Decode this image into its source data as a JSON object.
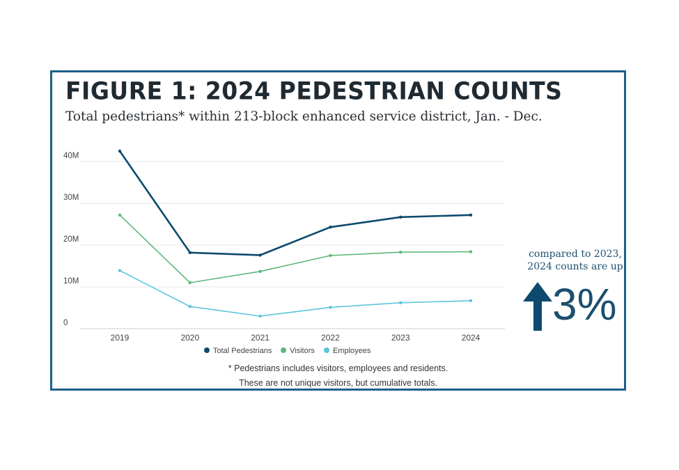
{
  "figure": {
    "title": "FIGURE 1: 2024 PEDESTRIAN COUNTS",
    "subtitle": "Total pedestrians* within 213-block enhanced service district, Jan. - Dec.",
    "footnote_line1": "* Pedestrians includes visitors, employees and residents.",
    "footnote_line2": "These are not unique visitors, but cumulative totals."
  },
  "callout": {
    "line1": "compared to 2023,",
    "line2": "2024 counts are up",
    "value": "3%",
    "icon": "up-arrow-icon"
  },
  "chart_data": {
    "type": "line",
    "categories": [
      "2019",
      "2020",
      "2021",
      "2022",
      "2023",
      "2024"
    ],
    "series": [
      {
        "name": "Total Pedestrians",
        "color": "#0d4a6e",
        "values": [
          42.5,
          18.2,
          17.6,
          24.3,
          26.7,
          27.2
        ]
      },
      {
        "name": "Visitors",
        "color": "#5db87a",
        "values": [
          27.2,
          11.0,
          13.7,
          17.5,
          18.3,
          18.4
        ]
      },
      {
        "name": "Employees",
        "color": "#5bc4dc",
        "values": [
          13.9,
          5.3,
          3.0,
          5.1,
          6.2,
          6.7
        ]
      }
    ],
    "y_ticks": [
      {
        "value": 0,
        "label": "0"
      },
      {
        "value": 10,
        "label": "10M"
      },
      {
        "value": 20,
        "label": "20M"
      },
      {
        "value": 30,
        "label": "30M"
      },
      {
        "value": 40,
        "label": "40M"
      }
    ],
    "ylim": [
      0,
      40
    ],
    "y_unit": "millions",
    "grid": true,
    "legend_position": "bottom"
  }
}
